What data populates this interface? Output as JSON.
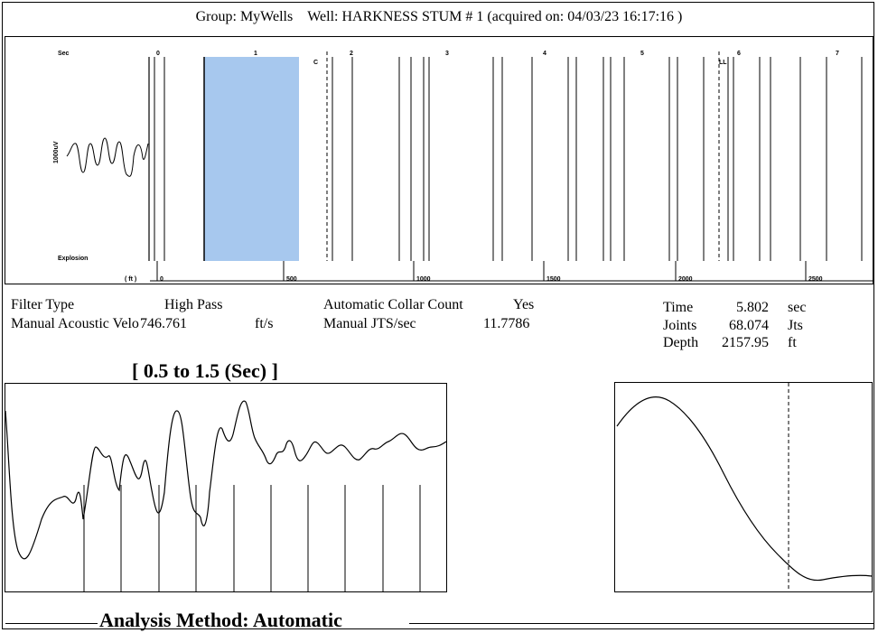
{
  "header": {
    "group_label": "Group: MyWells",
    "well_label": "Well: HARKNESS STUM # 1 (acquired on: 04/03/23 16:17:16 )"
  },
  "top_chart": {
    "sec_label": "Sec",
    "ft_label": "( ft )",
    "amplitude_label": "1000uV",
    "explosion_label": "Explosion",
    "collar_marker": "C",
    "liquid_level_marker": "LL",
    "sec_ticks": [
      "0",
      "1",
      "2",
      "3",
      "4",
      "5",
      "6",
      "7"
    ],
    "ft_ticks": [
      "0",
      "500",
      "1000",
      "1500",
      "2000",
      "2500"
    ],
    "selection_range_sec": [
      0.5,
      1.5
    ],
    "colors": {
      "selection": "#a7c8ee",
      "lines": "#000000"
    }
  },
  "params": {
    "filter_type_label": "Filter Type",
    "filter_type_value": "High Pass",
    "manual_velocity_label": "Manual Acoustic Veloc",
    "manual_velocity_value": "746.761",
    "manual_velocity_unit": "ft/s",
    "auto_collar_label": "Automatic Collar Count",
    "auto_collar_value": "Yes",
    "manual_jts_label": "Manual JTS/sec",
    "manual_jts_value": "11.7786",
    "time_label": "Time",
    "time_value": "5.802",
    "time_unit": "sec",
    "joints_label": "Joints",
    "joints_value": "68.074",
    "joints_unit": "Jts",
    "depth_label": "Depth",
    "depth_value": "2157.95",
    "depth_unit": "ft"
  },
  "range_title": "[ 0.5  to  1.5 (Sec) ]",
  "analysis_method": "Analysis Method:   Automatic"
}
